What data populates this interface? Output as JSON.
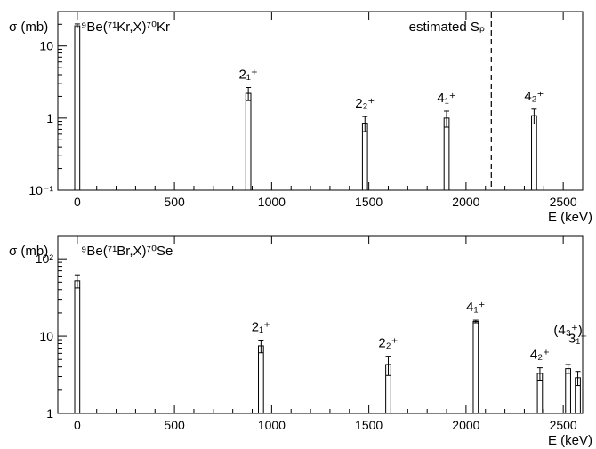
{
  "chart_data": [
    {
      "type": "bar",
      "title": "⁹Be(⁷¹Kr,X)⁷⁰Kr",
      "xlabel": "E (keV)",
      "ylabel": "σ (mb)",
      "xlim": [
        -100,
        2600
      ],
      "ylim": [
        0.1,
        30
      ],
      "log_y": true,
      "xticks": [
        0,
        500,
        1000,
        1500,
        2000,
        2500
      ],
      "yticks": [
        {
          "value": 0.1,
          "label": "10⁻¹"
        },
        {
          "value": 1,
          "label": "1"
        },
        {
          "value": 10,
          "label": "10"
        }
      ],
      "bars": [
        {
          "x": 0,
          "y": 19,
          "err": 1.2,
          "label": ""
        },
        {
          "x": 880,
          "y": 2.2,
          "err": 0.45,
          "label": "2₁⁺"
        },
        {
          "x": 1480,
          "y": 0.85,
          "err": 0.2,
          "label": "2₂⁺"
        },
        {
          "x": 1900,
          "y": 1.0,
          "err": 0.25,
          "label": "4₁⁺"
        },
        {
          "x": 2350,
          "y": 1.08,
          "err": 0.25,
          "label": "4₂⁺"
        }
      ],
      "annotation": {
        "text": "estimated Sₚ",
        "x": 2130
      }
    },
    {
      "type": "bar",
      "title": "⁹Be(⁷¹Br,X)⁷⁰Se",
      "xlabel": "E (keV)",
      "ylabel": "σ (mb)",
      "xlim": [
        -100,
        2600
      ],
      "ylim": [
        1,
        200
      ],
      "log_y": true,
      "xticks": [
        0,
        500,
        1000,
        1500,
        2000,
        2500
      ],
      "yticks": [
        {
          "value": 1,
          "label": "1"
        },
        {
          "value": 10,
          "label": "10"
        },
        {
          "value": 100,
          "label": "10²"
        }
      ],
      "bars": [
        {
          "x": 0,
          "y": 52,
          "err": 10,
          "label": ""
        },
        {
          "x": 945,
          "y": 7.5,
          "err": 1.4,
          "label": "2₁⁺"
        },
        {
          "x": 1600,
          "y": 4.3,
          "err": 1.2,
          "label": "2₂⁺"
        },
        {
          "x": 2050,
          "y": 15.5,
          "err": 0.6,
          "label": "4₁⁺"
        },
        {
          "x": 2380,
          "y": 3.3,
          "err": 0.6,
          "label": "4₂⁺"
        },
        {
          "x": 2525,
          "y": 3.8,
          "err": 0.5,
          "label": "(4₃⁺)"
        },
        {
          "x": 2575,
          "y": 2.9,
          "err": 0.6,
          "label": "3₁⁻"
        }
      ]
    }
  ]
}
